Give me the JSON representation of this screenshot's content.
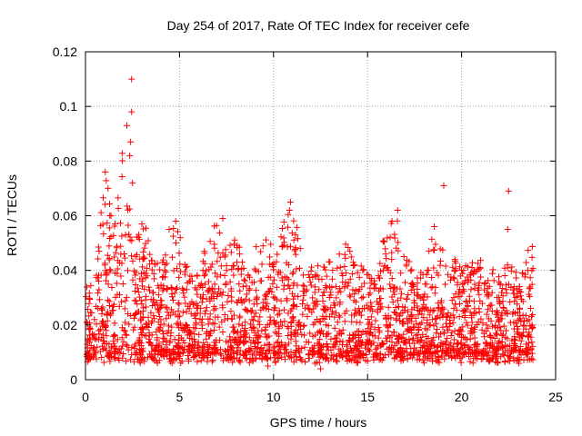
{
  "chart_data": {
    "type": "scatter",
    "title": "Day 254 of 2017, Rate Of TEC Index for receiver cefe",
    "xlabel": "GPS time / hours",
    "ylabel": "ROTI / TECUs",
    "xlim": [
      0,
      25
    ],
    "ylim": [
      0,
      0.12
    ],
    "xticks": [
      "0",
      "5",
      "10",
      "15",
      "20",
      "25"
    ],
    "yticks": [
      "0",
      "0.02",
      "0.04",
      "0.06",
      "0.08",
      "0.1",
      "0.12"
    ],
    "grid": true,
    "marker": "+",
    "marker_color": "#ff0000",
    "series": [
      {
        "name": "ROTI",
        "density_profile": {
          "x": [
            0.0,
            0.5,
            1.0,
            1.5,
            2.0,
            2.5,
            3.0,
            3.5,
            4.0,
            4.5,
            5.0,
            5.5,
            6.0,
            6.5,
            7.0,
            7.5,
            8.0,
            8.5,
            9.0,
            9.5,
            10.0,
            10.5,
            11.0,
            11.5,
            12.0,
            12.5,
            13.0,
            13.5,
            14.0,
            14.5,
            15.0,
            15.5,
            16.0,
            16.5,
            17.0,
            17.5,
            18.0,
            18.5,
            19.0,
            19.5,
            20.0,
            20.5,
            21.0,
            21.5,
            22.0,
            22.5,
            23.0,
            23.5,
            23.8
          ],
          "upper_envelope": [
            0.033,
            0.035,
            0.076,
            0.055,
            0.087,
            0.06,
            0.058,
            0.048,
            0.04,
            0.055,
            0.057,
            0.042,
            0.04,
            0.05,
            0.058,
            0.052,
            0.052,
            0.04,
            0.048,
            0.052,
            0.052,
            0.062,
            0.065,
            0.045,
            0.042,
            0.042,
            0.045,
            0.048,
            0.052,
            0.045,
            0.04,
            0.038,
            0.058,
            0.062,
            0.045,
            0.04,
            0.04,
            0.056,
            0.051,
            0.044,
            0.042,
            0.044,
            0.042,
            0.04,
            0.038,
            0.045,
            0.04,
            0.048,
            0.048
          ],
          "typical_low": 0.008
        },
        "points": [
          {
            "x": 2.45,
            "y": 0.11
          },
          {
            "x": 2.45,
            "y": 0.098
          },
          {
            "x": 2.2,
            "y": 0.093
          },
          {
            "x": 2.4,
            "y": 0.087
          },
          {
            "x": 2.35,
            "y": 0.082
          },
          {
            "x": 1.05,
            "y": 0.076
          },
          {
            "x": 1.2,
            "y": 0.07
          },
          {
            "x": 2.5,
            "y": 0.072
          },
          {
            "x": 19.05,
            "y": 0.071
          },
          {
            "x": 22.5,
            "y": 0.069
          },
          {
            "x": 10.9,
            "y": 0.065
          },
          {
            "x": 10.85,
            "y": 0.062
          },
          {
            "x": 16.6,
            "y": 0.062
          },
          {
            "x": 16.3,
            "y": 0.058
          },
          {
            "x": 7.3,
            "y": 0.059
          },
          {
            "x": 4.8,
            "y": 0.058
          },
          {
            "x": 4.45,
            "y": 0.055
          },
          {
            "x": 18.55,
            "y": 0.056
          },
          {
            "x": 3.0,
            "y": 0.057
          },
          {
            "x": 22.45,
            "y": 0.055
          },
          {
            "x": 12.5,
            "y": 0.004
          },
          {
            "x": 12.2,
            "y": 0.006
          },
          {
            "x": 4.6,
            "y": 0.006
          },
          {
            "x": 9.7,
            "y": 0.005
          },
          {
            "x": 23.05,
            "y": 0.006
          }
        ]
      }
    ]
  }
}
